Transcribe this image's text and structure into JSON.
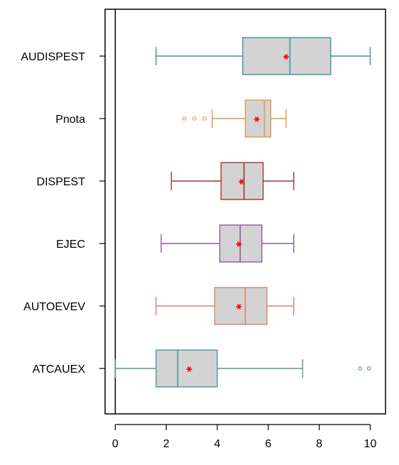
{
  "chart_data": {
    "type": "boxplot",
    "orientation": "horizontal",
    "title": "",
    "xlabel": "",
    "ylabel": "",
    "xlim": [
      -0.4,
      10.6
    ],
    "xticks": [
      0,
      2,
      4,
      6,
      8,
      10
    ],
    "xtick_labels": [
      "0",
      "2",
      "4",
      "6",
      "8",
      "10"
    ],
    "reference_line_x": 0,
    "grid": false,
    "mean_color": "#ff0000",
    "box_fill": "#d3d3d3",
    "categories": [
      "AUDISPEST",
      "Pnota",
      "DISPEST",
      "EJEC",
      "AUTOEVEV",
      "ATCAUEX"
    ],
    "boxes": [
      {
        "label": "AUDISPEST",
        "color": "#3a93a7",
        "whisker_low": 1.6,
        "q1": 5.0,
        "median": 6.85,
        "q3": 8.45,
        "whisker_high": 10.0,
        "mean": 6.7,
        "outliers": []
      },
      {
        "label": "Pnota",
        "color": "#e09a4a",
        "whisker_low": 3.8,
        "q1": 5.1,
        "median": 5.85,
        "q3": 6.1,
        "whisker_high": 6.7,
        "mean": 5.55,
        "outliers": [
          2.7,
          3.1,
          3.5
        ]
      },
      {
        "label": "DISPEST",
        "color": "#a8322d",
        "whisker_low": 2.2,
        "q1": 4.15,
        "median": 5.05,
        "q3": 5.8,
        "whisker_high": 7.0,
        "mean": 4.95,
        "outliers": []
      },
      {
        "label": "EJEC",
        "color": "#8d5a9e",
        "whisker_low": 1.8,
        "q1": 4.1,
        "median": 4.9,
        "q3": 5.75,
        "whisker_high": 7.0,
        "mean": 4.85,
        "outliers": []
      },
      {
        "label": "AUTOEVEV",
        "color": "#d9826c",
        "whisker_low": 1.6,
        "q1": 3.9,
        "median": 5.1,
        "q3": 5.95,
        "whisker_high": 7.0,
        "mean": 4.85,
        "outliers": []
      },
      {
        "label": "ATCAUEX",
        "color": "#4e97a6",
        "whisker_low": 0.0,
        "q1": 1.6,
        "median": 2.45,
        "q3": 4.0,
        "whisker_high": 7.35,
        "mean": 2.9,
        "outliers": [
          9.6,
          9.95
        ]
      }
    ]
  }
}
